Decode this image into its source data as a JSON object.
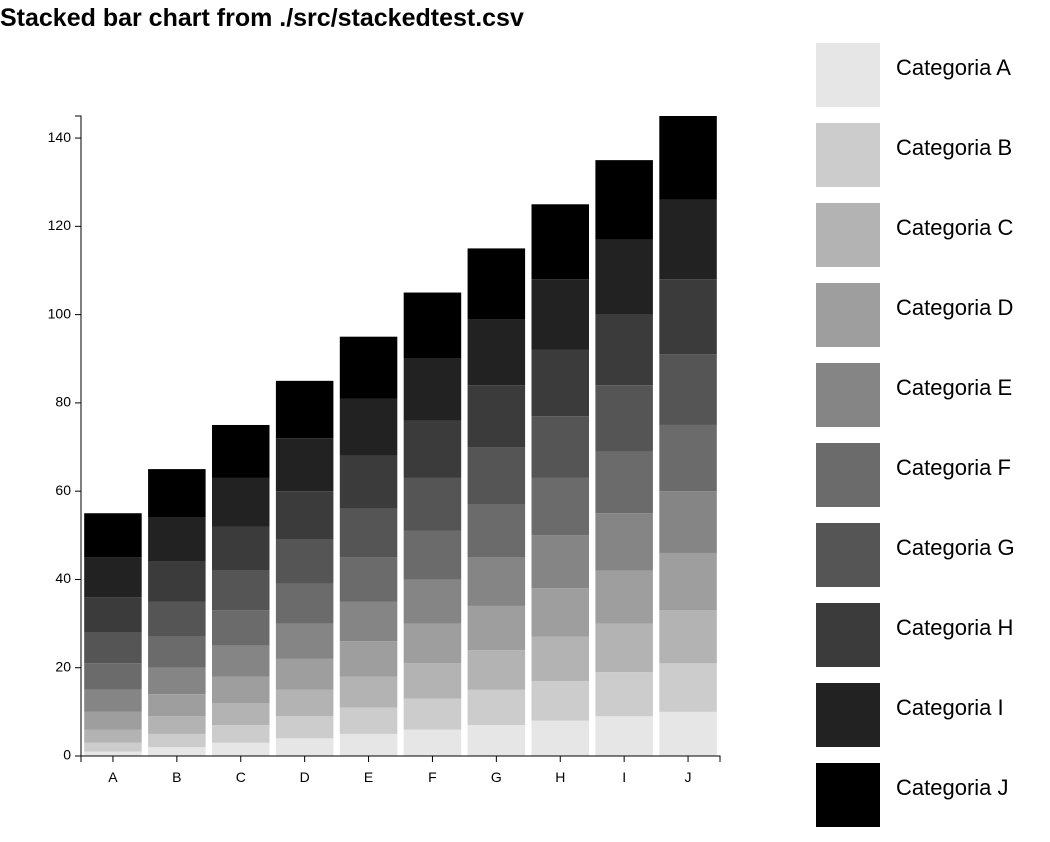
{
  "title": "Stacked bar chart from ./src/stackedtest.csv",
  "chart_data": {
    "type": "bar",
    "stacked": true,
    "categories": [
      "A",
      "B",
      "C",
      "D",
      "E",
      "F",
      "G",
      "H",
      "I",
      "J"
    ],
    "ylim": [
      0,
      145
    ],
    "yticks": [
      0,
      20,
      40,
      60,
      80,
      100,
      120,
      140
    ],
    "xlabel": "",
    "ylabel": "",
    "legend_position": "right",
    "series": [
      {
        "name": "Categoria A",
        "color": "#e6e6e6",
        "values": [
          1,
          2,
          3,
          4,
          5,
          6,
          7,
          8,
          9,
          10
        ]
      },
      {
        "name": "Categoria B",
        "color": "#cccccc",
        "values": [
          2,
          3,
          4,
          5,
          6,
          7,
          8,
          9,
          10,
          11
        ]
      },
      {
        "name": "Categoria C",
        "color": "#b3b3b3",
        "values": [
          3,
          4,
          5,
          6,
          7,
          8,
          9,
          10,
          11,
          12
        ]
      },
      {
        "name": "Categoria D",
        "color": "#9e9e9e",
        "values": [
          4,
          5,
          6,
          7,
          8,
          9,
          10,
          11,
          12,
          13
        ]
      },
      {
        "name": "Categoria E",
        "color": "#858585",
        "values": [
          5,
          6,
          7,
          8,
          9,
          10,
          11,
          12,
          13,
          14
        ]
      },
      {
        "name": "Categoria F",
        "color": "#6b6b6b",
        "values": [
          6,
          7,
          8,
          9,
          10,
          11,
          12,
          13,
          14,
          15
        ]
      },
      {
        "name": "Categoria G",
        "color": "#555555",
        "values": [
          7,
          8,
          9,
          10,
          11,
          12,
          13,
          14,
          15,
          16
        ]
      },
      {
        "name": "Categoria H",
        "color": "#3b3b3b",
        "values": [
          8,
          9,
          10,
          11,
          12,
          13,
          14,
          15,
          16,
          17
        ]
      },
      {
        "name": "Categoria I",
        "color": "#222222",
        "values": [
          9,
          10,
          11,
          12,
          13,
          14,
          15,
          16,
          17,
          18
        ]
      },
      {
        "name": "Categoria J",
        "color": "#000000",
        "values": [
          10,
          11,
          12,
          13,
          14,
          15,
          16,
          17,
          18,
          19
        ]
      }
    ]
  }
}
